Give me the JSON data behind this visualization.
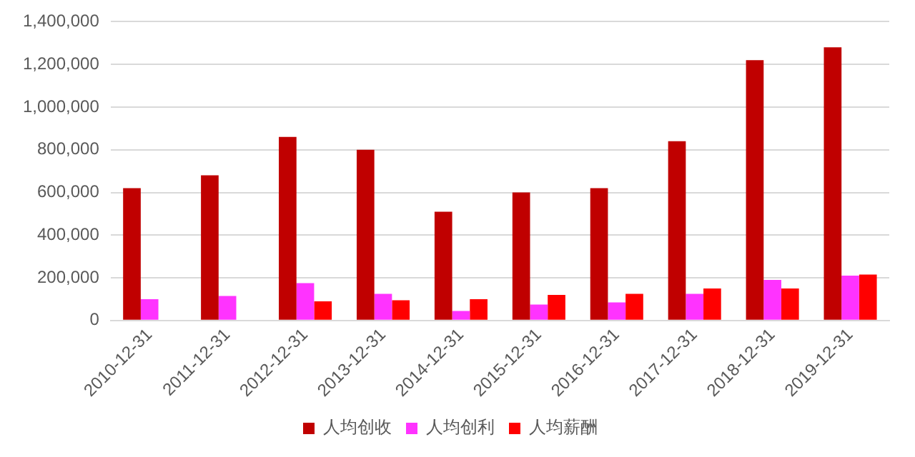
{
  "chart_data": {
    "type": "bar",
    "categories": [
      "2010-12-31",
      "2011-12-31",
      "2012-12-31",
      "2013-12-31",
      "2014-12-31",
      "2015-12-31",
      "2016-12-31",
      "2017-12-31",
      "2018-12-31",
      "2019-12-31"
    ],
    "series": [
      {
        "name": "人均创收",
        "color": "#c00000",
        "values": [
          620000,
          680000,
          860000,
          800000,
          510000,
          600000,
          620000,
          840000,
          1220000,
          1280000
        ]
      },
      {
        "name": "人均创利",
        "color": "#ff33ff",
        "values": [
          100000,
          115000,
          175000,
          125000,
          45000,
          75000,
          85000,
          125000,
          190000,
          210000
        ]
      },
      {
        "name": "人均薪酬",
        "color": "#ff0000",
        "values": [
          null,
          null,
          90000,
          95000,
          100000,
          120000,
          125000,
          150000,
          150000,
          215000
        ]
      }
    ],
    "ylim": [
      0,
      1400000
    ],
    "yticks": [
      0,
      {
        "value": 200000,
        "label": "200,000"
      },
      {
        "value": 400000,
        "label": "400,000"
      },
      {
        "value": 600000,
        "label": "600,000"
      },
      {
        "value": 800000,
        "label": "800,000"
      },
      {
        "value": 1000000,
        "label": "1,000,000"
      },
      {
        "value": 1200000,
        "label": "1,200,000"
      },
      {
        "value": 1400000,
        "label": "1,400,000"
      }
    ],
    "grid": "y",
    "legend": "bottom"
  }
}
